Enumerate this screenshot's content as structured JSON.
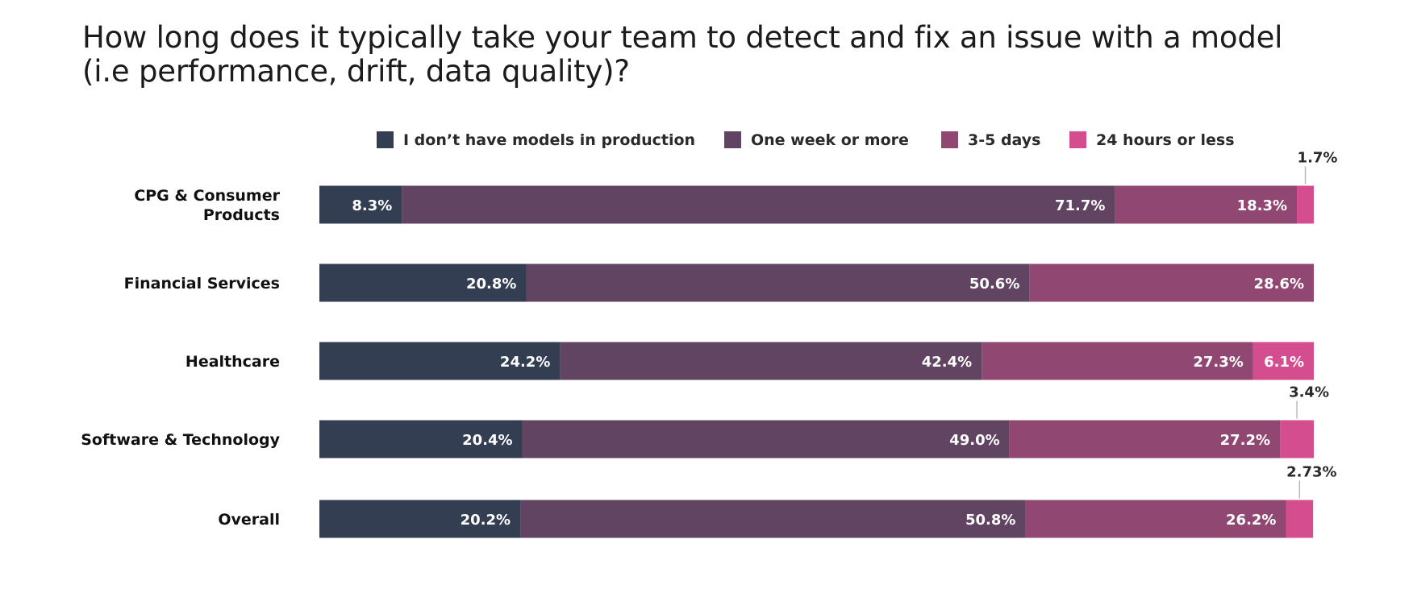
{
  "chart_data": {
    "type": "bar",
    "orientation": "horizontal",
    "stacked": true,
    "title_lines": [
      "How long does it typically take your team to detect and fix an issue with a model",
      "(i.e performance, drift, data quality)?"
    ],
    "legend_position": "top",
    "categories": [
      [
        "CPG & Consumer",
        "Products"
      ],
      [
        "Financial Services"
      ],
      [
        "Healthcare"
      ],
      [
        "Software & Technology"
      ],
      [
        "Overall"
      ]
    ],
    "xlim": [
      0,
      100
    ],
    "grid": false,
    "series": [
      {
        "name": "I don’t have models in production",
        "color": "#333e52",
        "values": [
          8.3,
          20.8,
          24.2,
          20.4,
          20.2
        ],
        "labels": [
          "8.3%",
          "20.8%",
          "24.2%",
          "20.4%",
          "20.2%"
        ]
      },
      {
        "name": "One week or more",
        "color": "#614461",
        "values": [
          71.7,
          50.6,
          42.4,
          49.0,
          50.8
        ],
        "labels": [
          "71.7%",
          "50.6%",
          "42.4%",
          "49.0%",
          "50.8%"
        ]
      },
      {
        "name": "3-5 days",
        "color": "#904872",
        "values": [
          18.3,
          28.6,
          27.3,
          27.2,
          26.2
        ],
        "labels": [
          "18.3%",
          "28.6%",
          "27.3%",
          "27.2%",
          "26.2%"
        ]
      },
      {
        "name": "24 hours or less",
        "color": "#d44d8f",
        "values": [
          1.7,
          0,
          6.1,
          3.4,
          2.73
        ],
        "labels": [
          "1.7%",
          "",
          "6.1%",
          "3.4%",
          "2.73%"
        ]
      }
    ]
  }
}
